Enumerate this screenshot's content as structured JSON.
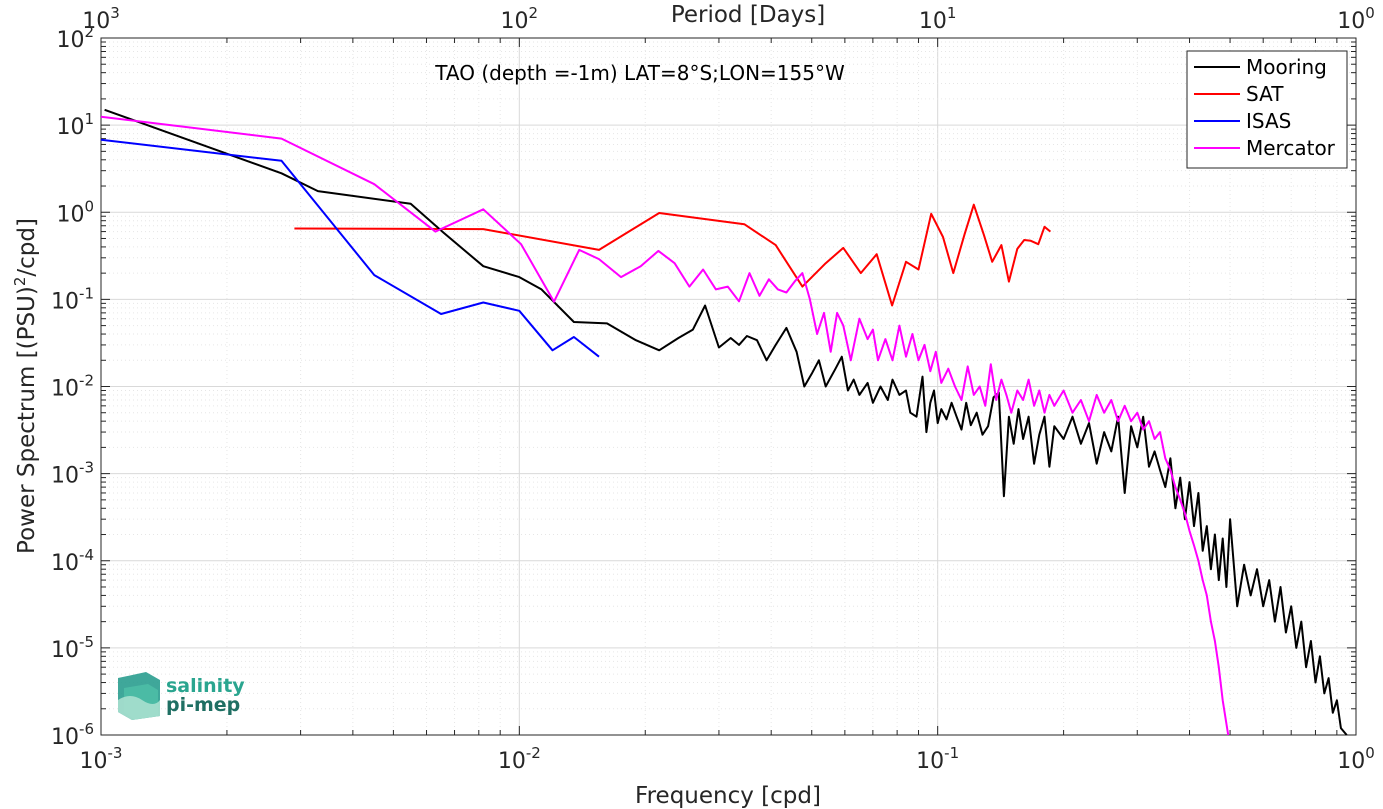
{
  "chart_data": {
    "type": "line",
    "title": "TAO (depth =-1m) LAT=8°S;LON=155°W",
    "xlabel": "Frequency [cpd]",
    "ylabel": "Power Spectrum [(PSU)",
    "ylabel_sup": "2",
    "ylabel_end": "/cpd]",
    "x2label": "Period [Days]",
    "xscale": "log",
    "yscale": "log",
    "xlim": [
      0.001,
      1
    ],
    "ylim": [
      1e-06,
      100
    ],
    "x_ticks": [
      {
        "base": "10",
        "exp": "-3"
      },
      {
        "base": "10",
        "exp": "-2"
      },
      {
        "base": "10",
        "exp": "-1"
      },
      {
        "base": "10",
        "exp": "0"
      }
    ],
    "x2_ticks": [
      {
        "base": "10",
        "exp": "3"
      },
      {
        "base": "10",
        "exp": "2"
      },
      {
        "base": "10",
        "exp": "1"
      },
      {
        "base": "10",
        "exp": "0"
      }
    ],
    "y_ticks": [
      {
        "base": "10",
        "exp": "-6"
      },
      {
        "base": "10",
        "exp": "-5"
      },
      {
        "base": "10",
        "exp": "-4"
      },
      {
        "base": "10",
        "exp": "-3"
      },
      {
        "base": "10",
        "exp": "-2"
      },
      {
        "base": "10",
        "exp": "-1"
      },
      {
        "base": "10",
        "exp": "0"
      },
      {
        "base": "10",
        "exp": "1"
      },
      {
        "base": "10",
        "exp": "2"
      }
    ],
    "grid": true,
    "legend_position": "top-right",
    "series": [
      {
        "name": "Mooring",
        "color": "#000000",
        "points": [
          [
            0.00102,
            15
          ],
          [
            0.0027,
            2.8
          ],
          [
            0.0033,
            1.75
          ],
          [
            0.0055,
            1.25
          ],
          [
            0.0066,
            0.58
          ],
          [
            0.0082,
            0.24
          ],
          [
            0.01,
            0.18
          ],
          [
            0.0113,
            0.13
          ],
          [
            0.0135,
            0.055
          ],
          [
            0.0162,
            0.053
          ],
          [
            0.019,
            0.034
          ],
          [
            0.0216,
            0.026
          ],
          [
            0.024,
            0.036
          ],
          [
            0.026,
            0.045
          ],
          [
            0.0278,
            0.085
          ],
          [
            0.03,
            0.028
          ],
          [
            0.032,
            0.036
          ],
          [
            0.0335,
            0.03
          ],
          [
            0.035,
            0.038
          ],
          [
            0.037,
            0.034
          ],
          [
            0.039,
            0.02
          ],
          [
            0.041,
            0.03
          ],
          [
            0.0435,
            0.047
          ],
          [
            0.046,
            0.025
          ],
          [
            0.048,
            0.01
          ],
          [
            0.05,
            0.014
          ],
          [
            0.052,
            0.02
          ],
          [
            0.054,
            0.01
          ],
          [
            0.057,
            0.016
          ],
          [
            0.059,
            0.022
          ],
          [
            0.061,
            0.009
          ],
          [
            0.063,
            0.012
          ],
          [
            0.065,
            0.008
          ],
          [
            0.068,
            0.011
          ],
          [
            0.07,
            0.0065
          ],
          [
            0.073,
            0.01
          ],
          [
            0.076,
            0.007
          ],
          [
            0.078,
            0.012
          ],
          [
            0.081,
            0.008
          ],
          [
            0.084,
            0.009
          ],
          [
            0.086,
            0.005
          ],
          [
            0.089,
            0.0045
          ],
          [
            0.092,
            0.013
          ],
          [
            0.094,
            0.003
          ],
          [
            0.096,
            0.0065
          ],
          [
            0.098,
            0.009
          ],
          [
            0.1,
            0.0038
          ],
          [
            0.102,
            0.0055
          ],
          [
            0.105,
            0.0042
          ],
          [
            0.108,
            0.0065
          ],
          [
            0.111,
            0.0045
          ],
          [
            0.114,
            0.0032
          ],
          [
            0.117,
            0.0065
          ],
          [
            0.12,
            0.0036
          ],
          [
            0.124,
            0.005
          ],
          [
            0.128,
            0.0028
          ],
          [
            0.132,
            0.0035
          ],
          [
            0.136,
            0.0075
          ],
          [
            0.14,
            0.0085
          ],
          [
            0.144,
            0.00055
          ],
          [
            0.148,
            0.0045
          ],
          [
            0.152,
            0.0022
          ],
          [
            0.156,
            0.0055
          ],
          [
            0.16,
            0.0025
          ],
          [
            0.165,
            0.0045
          ],
          [
            0.17,
            0.0013
          ],
          [
            0.175,
            0.0028
          ],
          [
            0.18,
            0.0045
          ],
          [
            0.185,
            0.0012
          ],
          [
            0.19,
            0.0035
          ],
          [
            0.2,
            0.0025
          ],
          [
            0.21,
            0.0045
          ],
          [
            0.22,
            0.0022
          ],
          [
            0.23,
            0.0038
          ],
          [
            0.24,
            0.0013
          ],
          [
            0.25,
            0.003
          ],
          [
            0.26,
            0.0018
          ],
          [
            0.27,
            0.0045
          ],
          [
            0.28,
            0.0006
          ],
          [
            0.29,
            0.0035
          ],
          [
            0.3,
            0.002
          ],
          [
            0.31,
            0.0045
          ],
          [
            0.32,
            0.0012
          ],
          [
            0.33,
            0.0018
          ],
          [
            0.34,
            0.0011
          ],
          [
            0.35,
            0.0007
          ],
          [
            0.36,
            0.0015
          ],
          [
            0.37,
            0.0004
          ],
          [
            0.38,
            0.0009
          ],
          [
            0.39,
            0.0003
          ],
          [
            0.4,
            0.0008
          ],
          [
            0.41,
            0.00025
          ],
          [
            0.42,
            0.0006
          ],
          [
            0.43,
            0.00013
          ],
          [
            0.44,
            0.00025
          ],
          [
            0.45,
            8e-05
          ],
          [
            0.46,
            0.0002
          ],
          [
            0.47,
            6e-05
          ],
          [
            0.48,
            0.00018
          ],
          [
            0.49,
            5e-05
          ],
          [
            0.5,
            0.0003
          ],
          [
            0.52,
            3e-05
          ],
          [
            0.54,
            9e-05
          ],
          [
            0.56,
            4e-05
          ],
          [
            0.58,
            8e-05
          ],
          [
            0.6,
            3e-05
          ],
          [
            0.62,
            6e-05
          ],
          [
            0.64,
            2e-05
          ],
          [
            0.66,
            5e-05
          ],
          [
            0.68,
            1.5e-05
          ],
          [
            0.7,
            3e-05
          ],
          [
            0.72,
            1e-05
          ],
          [
            0.74,
            2e-05
          ],
          [
            0.76,
            6e-06
          ],
          [
            0.78,
            1.2e-05
          ],
          [
            0.8,
            4e-06
          ],
          [
            0.82,
            8e-06
          ],
          [
            0.84,
            3e-06
          ],
          [
            0.86,
            4.5e-06
          ],
          [
            0.88,
            1.8e-06
          ],
          [
            0.9,
            2.5e-06
          ],
          [
            0.92,
            1.2e-06
          ],
          [
            0.95,
            1e-06
          ]
        ]
      },
      {
        "name": "SAT",
        "color": "#ff0000",
        "points": [
          [
            0.0029,
            0.65
          ],
          [
            0.0082,
            0.64
          ],
          [
            0.0155,
            0.37
          ],
          [
            0.0216,
            0.98
          ],
          [
            0.0345,
            0.73
          ],
          [
            0.041,
            0.42
          ],
          [
            0.0475,
            0.14
          ],
          [
            0.054,
            0.26
          ],
          [
            0.0595,
            0.39
          ],
          [
            0.0655,
            0.2
          ],
          [
            0.0715,
            0.33
          ],
          [
            0.0778,
            0.085
          ],
          [
            0.084,
            0.27
          ],
          [
            0.09,
            0.22
          ],
          [
            0.0965,
            0.96
          ],
          [
            0.103,
            0.52
          ],
          [
            0.109,
            0.2
          ],
          [
            0.116,
            0.56
          ],
          [
            0.122,
            1.22
          ],
          [
            0.129,
            0.55
          ],
          [
            0.135,
            0.27
          ],
          [
            0.142,
            0.42
          ],
          [
            0.148,
            0.16
          ],
          [
            0.155,
            0.38
          ],
          [
            0.161,
            0.48
          ],
          [
            0.167,
            0.47
          ],
          [
            0.174,
            0.43
          ],
          [
            0.18,
            0.68
          ],
          [
            0.186,
            0.6
          ]
        ]
      },
      {
        "name": "ISAS",
        "color": "#0000ff",
        "points": [
          [
            0.001,
            6.8
          ],
          [
            0.0027,
            3.9
          ],
          [
            0.0045,
            0.19
          ],
          [
            0.0065,
            0.068
          ],
          [
            0.0082,
            0.092
          ],
          [
            0.01,
            0.074
          ],
          [
            0.012,
            0.026
          ],
          [
            0.0135,
            0.037
          ],
          [
            0.0155,
            0.022
          ]
        ]
      },
      {
        "name": "Mercator",
        "color": "#ff00ff",
        "points": [
          [
            0.001,
            12.5
          ],
          [
            0.0027,
            7
          ],
          [
            0.0045,
            2.1
          ],
          [
            0.0063,
            0.6
          ],
          [
            0.0082,
            1.08
          ],
          [
            0.0101,
            0.43
          ],
          [
            0.0121,
            0.094
          ],
          [
            0.0139,
            0.37
          ],
          [
            0.0155,
            0.29
          ],
          [
            0.0175,
            0.18
          ],
          [
            0.0195,
            0.24
          ],
          [
            0.0215,
            0.36
          ],
          [
            0.0235,
            0.26
          ],
          [
            0.0255,
            0.14
          ],
          [
            0.0275,
            0.22
          ],
          [
            0.0295,
            0.13
          ],
          [
            0.0315,
            0.14
          ],
          [
            0.0335,
            0.095
          ],
          [
            0.0355,
            0.2
          ],
          [
            0.0375,
            0.11
          ],
          [
            0.0395,
            0.17
          ],
          [
            0.0415,
            0.13
          ],
          [
            0.0435,
            0.12
          ],
          [
            0.0455,
            0.16
          ],
          [
            0.0475,
            0.2
          ],
          [
            0.0495,
            0.1
          ],
          [
            0.0515,
            0.04
          ],
          [
            0.0535,
            0.07
          ],
          [
            0.0555,
            0.025
          ],
          [
            0.0575,
            0.07
          ],
          [
            0.0595,
            0.05
          ],
          [
            0.062,
            0.02
          ],
          [
            0.065,
            0.06
          ],
          [
            0.068,
            0.035
          ],
          [
            0.07,
            0.045
          ],
          [
            0.072,
            0.02
          ],
          [
            0.075,
            0.035
          ],
          [
            0.078,
            0.02
          ],
          [
            0.081,
            0.05
          ],
          [
            0.084,
            0.022
          ],
          [
            0.087,
            0.04
          ],
          [
            0.09,
            0.02
          ],
          [
            0.093,
            0.03
          ],
          [
            0.096,
            0.015
          ],
          [
            0.099,
            0.025
          ],
          [
            0.102,
            0.011
          ],
          [
            0.106,
            0.016
          ],
          [
            0.11,
            0.01
          ],
          [
            0.114,
            0.007
          ],
          [
            0.118,
            0.017
          ],
          [
            0.122,
            0.008
          ],
          [
            0.126,
            0.01
          ],
          [
            0.13,
            0.006
          ],
          [
            0.134,
            0.018
          ],
          [
            0.138,
            0.007
          ],
          [
            0.142,
            0.012
          ],
          [
            0.146,
            0.008
          ],
          [
            0.15,
            0.005
          ],
          [
            0.155,
            0.009
          ],
          [
            0.16,
            0.007
          ],
          [
            0.165,
            0.012
          ],
          [
            0.17,
            0.006
          ],
          [
            0.175,
            0.009
          ],
          [
            0.18,
            0.005
          ],
          [
            0.185,
            0.008
          ],
          [
            0.19,
            0.006
          ],
          [
            0.2,
            0.009
          ],
          [
            0.21,
            0.005
          ],
          [
            0.22,
            0.007
          ],
          [
            0.23,
            0.004
          ],
          [
            0.24,
            0.008
          ],
          [
            0.25,
            0.005
          ],
          [
            0.26,
            0.007
          ],
          [
            0.27,
            0.004
          ],
          [
            0.28,
            0.006
          ],
          [
            0.29,
            0.004
          ],
          [
            0.3,
            0.005
          ],
          [
            0.31,
            0.0032
          ],
          [
            0.32,
            0.004
          ],
          [
            0.33,
            0.0025
          ],
          [
            0.34,
            0.003
          ],
          [
            0.35,
            0.0015
          ],
          [
            0.36,
            0.0011
          ],
          [
            0.37,
            0.0007
          ],
          [
            0.38,
            0.0005
          ],
          [
            0.39,
            0.00035
          ],
          [
            0.4,
            0.00022
          ],
          [
            0.41,
            0.00015
          ],
          [
            0.42,
            0.0001
          ],
          [
            0.43,
            6e-05
          ],
          [
            0.44,
            4e-05
          ],
          [
            0.45,
            2e-05
          ],
          [
            0.46,
            1.2e-05
          ],
          [
            0.47,
            6e-06
          ],
          [
            0.48,
            2.5e-06
          ],
          [
            0.495,
            1e-06
          ]
        ]
      }
    ]
  },
  "logo": {
    "line1": "salinity",
    "line2": "pi-mep"
  }
}
